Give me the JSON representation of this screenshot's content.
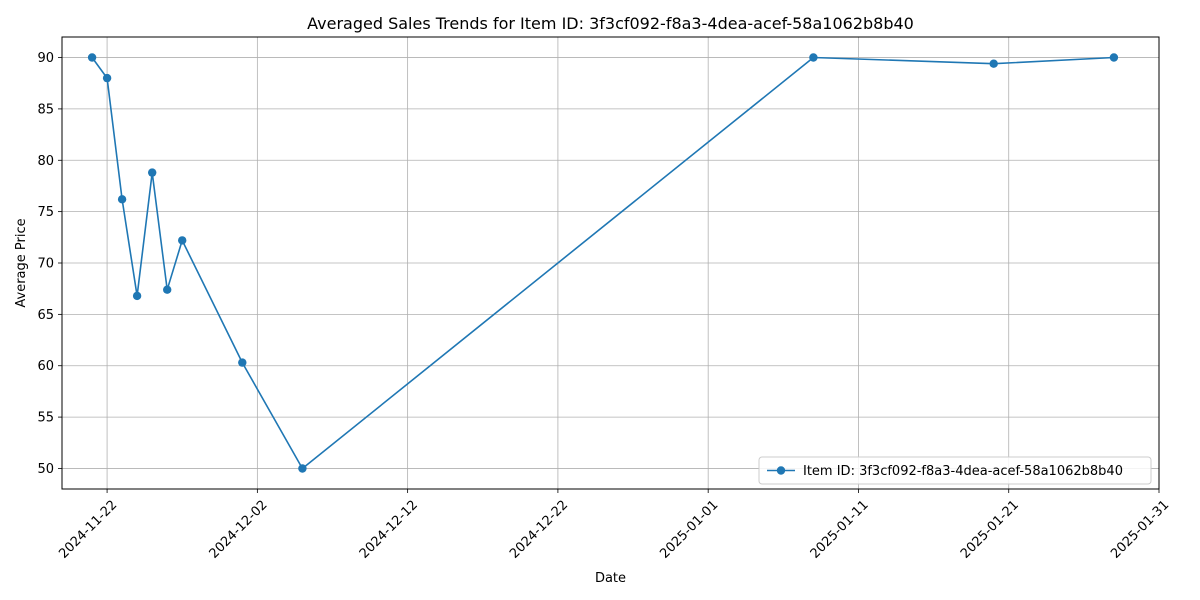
{
  "chart_data": {
    "type": "line",
    "title": "Averaged Sales Trends for Item ID: 3f3cf092-f8a3-4dea-acef-58a1062b8b40",
    "xlabel": "Date",
    "ylabel": "Average Price",
    "x_is_date": true,
    "xlim": [
      "2024-11-19",
      "2025-01-31"
    ],
    "ylim": [
      48,
      92
    ],
    "x_ticks": [
      "2024-11-22",
      "2024-12-02",
      "2024-12-12",
      "2024-12-22",
      "2025-01-01",
      "2025-01-11",
      "2025-01-21",
      "2025-01-31"
    ],
    "y_ticks": [
      50,
      55,
      60,
      65,
      70,
      75,
      80,
      85,
      90
    ],
    "grid": true,
    "legend_position": "lower-right",
    "series": [
      {
        "name": "Item ID: 3f3cf092-f8a3-4dea-acef-58a1062b8b40",
        "color": "#1f77b4",
        "marker": "circle",
        "x": [
          "2024-11-21",
          "2024-11-22",
          "2024-11-23",
          "2024-11-24",
          "2024-11-25",
          "2024-11-26",
          "2024-11-27",
          "2024-12-01",
          "2024-12-05",
          "2025-01-08",
          "2025-01-20",
          "2025-01-28"
        ],
        "y": [
          90.0,
          88.0,
          76.2,
          66.8,
          78.8,
          67.4,
          72.2,
          60.3,
          50.0,
          90.0,
          89.4,
          90.0
        ]
      }
    ]
  }
}
